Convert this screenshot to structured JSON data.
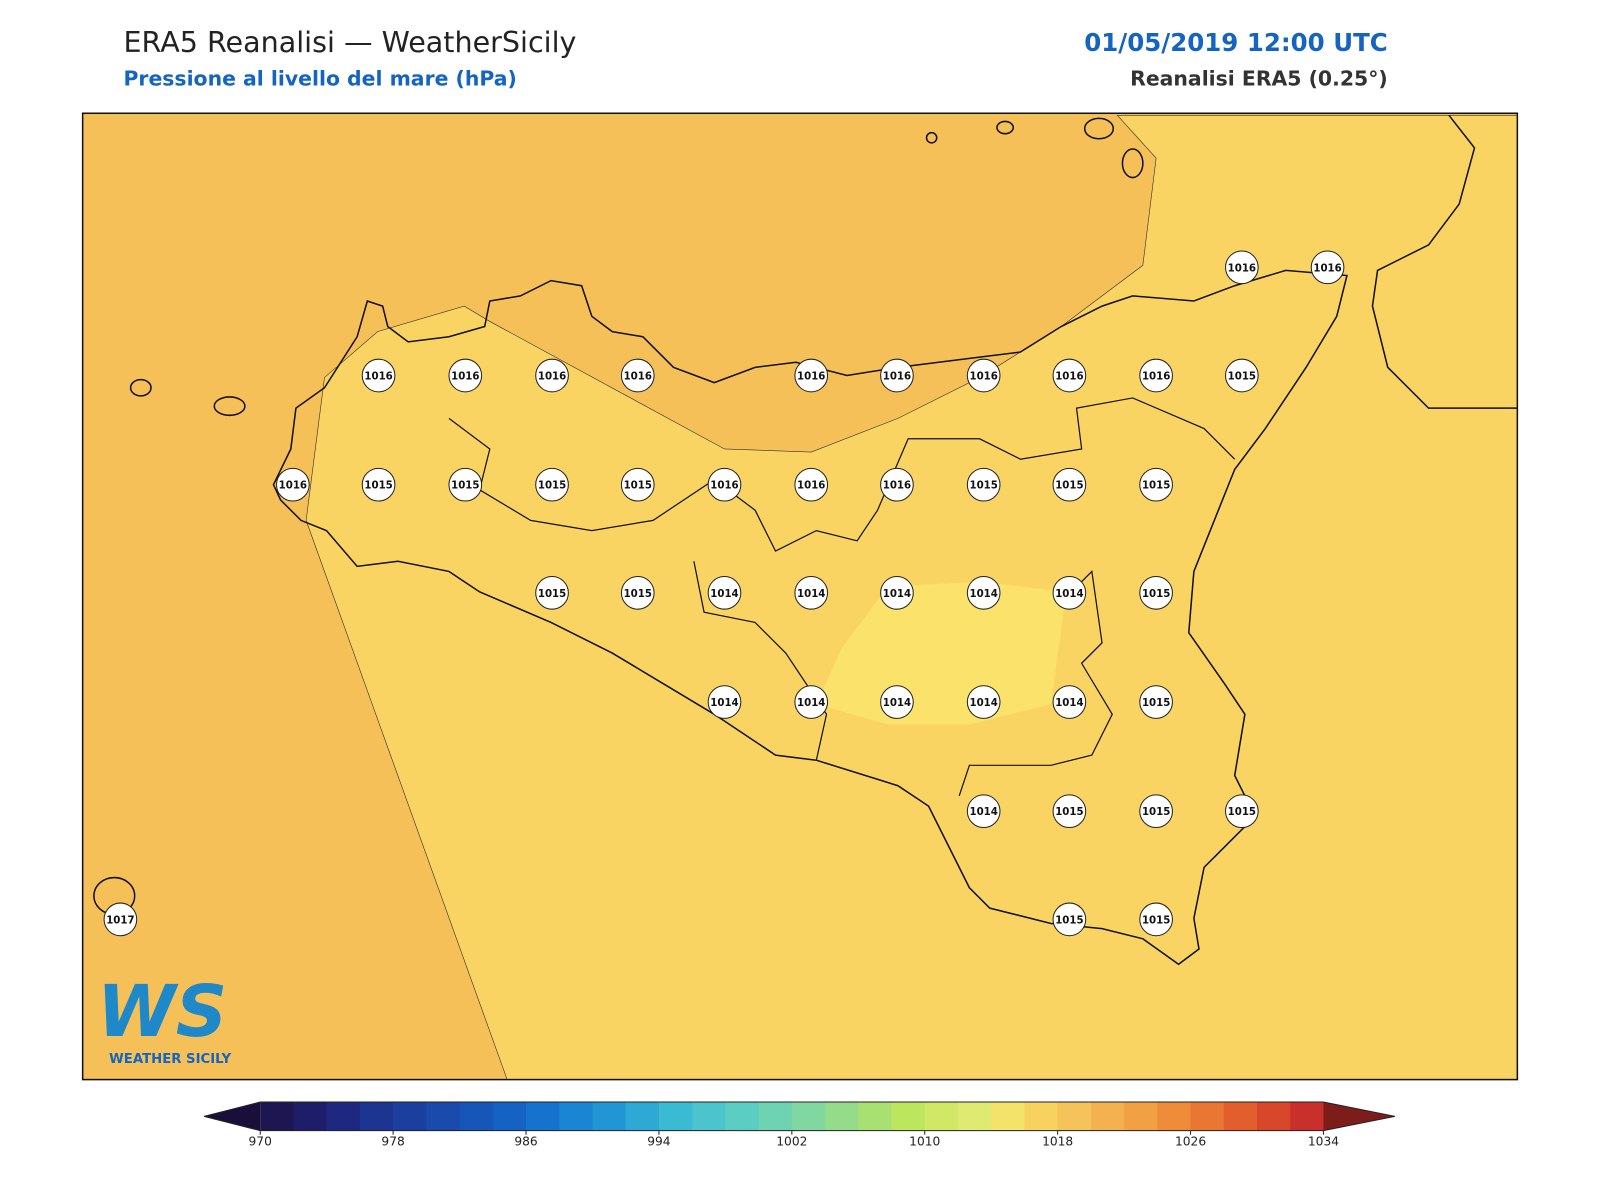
{
  "header": {
    "title": "ERA5 Reanalisi — WeatherSicily",
    "subtitle": "Pressione al livello del mare (hPa)",
    "datetime": "01/05/2019 12:00 UTC",
    "source": "Reanalisi ERA5 (0.25°)"
  },
  "map": {
    "points": [
      1016,
      1016,
      1016,
      1016,
      1016,
      1016,
      1016,
      1016,
      1016,
      1016,
      1016,
      1015,
      1016,
      1015,
      1015,
      1015,
      1015,
      1016,
      1016,
      1016,
      1015,
      1015,
      1015,
      1015,
      1015,
      1014,
      1014,
      1014,
      1014,
      1014,
      1015,
      1014,
      1014,
      1014,
      1014,
      1014,
      1015,
      1014,
      1015,
      1015,
      1015,
      1017,
      1015,
      1015
    ]
  },
  "colorbar": {
    "lim": [
      970,
      1034
    ],
    "ticks": [
      970,
      978,
      986,
      994,
      1002,
      1010,
      1018,
      1026,
      1034
    ],
    "colors": [
      "#1e1650",
      "#1e1d6a",
      "#1e2880",
      "#1b3590",
      "#1a3f9e",
      "#1a4aab",
      "#1656b8",
      "#1463c4",
      "#1573cd",
      "#1a85d2",
      "#2296d4",
      "#2ea8d4",
      "#3bbad4",
      "#4bc4cd",
      "#5ccdc2",
      "#6ed3b3",
      "#80d8a0",
      "#94dc8a",
      "#a8e072",
      "#bde65f",
      "#d0e866",
      "#dfea72",
      "#f3e36b",
      "#f8d25f",
      "#f6c35a",
      "#f3b24f",
      "#f1a044",
      "#ee8c3a",
      "#e97632",
      "#e25e2d",
      "#d9472b",
      "#c9302b"
    ],
    "under_color": "#1a0e3a",
    "over_color": "#7e1c1c"
  },
  "logo": {
    "mark": "WS",
    "name": "WEATHER SICILY"
  }
}
